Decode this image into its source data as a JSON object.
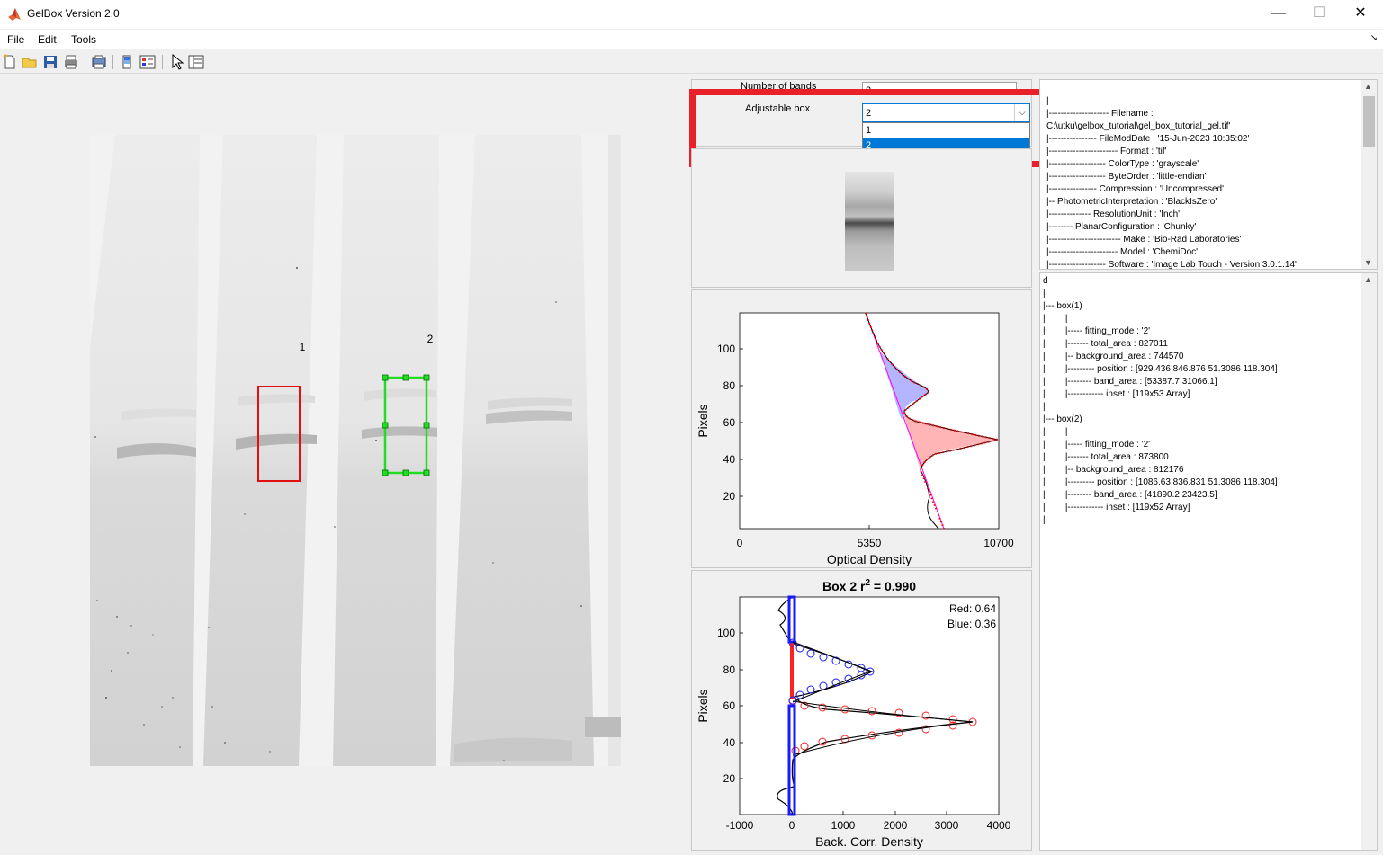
{
  "window": {
    "title": "GelBox Version 2.0",
    "minimize": "—",
    "maximize": "☐",
    "close": "✕"
  },
  "menu": [
    "File",
    "Edit",
    "Tools"
  ],
  "gel": {
    "lanes": [
      {
        "label": "1"
      },
      {
        "label": "2"
      }
    ]
  },
  "controls": {
    "num_bands_label": "Number of bands",
    "num_bands_value": "2",
    "adjustable_box_label": "Adjustable box",
    "adjustable_box_value": "2",
    "options": [
      "1",
      "2"
    ],
    "selected_option": "2"
  },
  "colors": {
    "highlight": "#e8202a",
    "box_red": "#e01010",
    "box_green": "#22dd22",
    "selection": "#0078d7",
    "fit_blue": "#1a1aff",
    "fit_red": "#ff2020"
  },
  "info_top": {
    "lines": [
      "|",
      "|-------------------- Filename :",
      "C:\\utku\\gelbox_tutorial\\gel_box_tutorial_gel.tif'",
      "|---------------- FileModDate : '15-Jun-2023 10:35:02'",
      "|----------------------- Format : 'tif'",
      "|------------------- ColorType : 'grayscale'",
      "|------------------- ByteOrder : 'little-endian'",
      "|---------------- Compression : 'Uncompressed'",
      "|-- PhotometricInterpretation : 'BlackIsZero'",
      "|-------------- ResolutionUnit : 'Inch'",
      "|-------- PlanarConfiguration : 'Chunky'",
      "|------------------------ Make : 'Bio-Rad Laboratories'",
      "|----------------------- Model : 'ChemiDoc'",
      "|------------------- Software : 'Image Lab Touch - Version 3.0.1.14'"
    ]
  },
  "info_bottom": {
    "lines": [
      "d",
      "|",
      "|--- box(1)",
      "|        |",
      "|        |----- fitting_mode : '2'",
      "|        |------- total_area : 827011",
      "|        |-- background_area : 744570",
      "|        |--------- position : [929.436 846.876 51.3086 118.304]",
      "|        |-------- band_area : [53387.7 31066.1]",
      "|        |------------ inset : [119x53 Array]",
      "|",
      "|--- box(2)",
      "|        |",
      "|        |----- fitting_mode : '2'",
      "|        |------- total_area : 873800",
      "|        |-- background_area : 812176",
      "|        |--------- position : [1086.63 836.831 51.3086 118.304]",
      "|        |-------- band_area : [41890.2 23423.5]",
      "|        |------------ inset : [119x52 Array]",
      "|"
    ]
  },
  "plot1": {
    "ylabel": "Pixels",
    "xlabel": "Optical Density",
    "x_ticks": [
      "0",
      "5350",
      "10700"
    ],
    "y_ticks": [
      "20",
      "40",
      "60",
      "80",
      "100"
    ]
  },
  "plot2": {
    "title_prefix": "Box 2 r",
    "title_sup": "2",
    "title_suffix": " = 0.990",
    "ylabel": "Pixels",
    "xlabel": "Back. Corr. Density",
    "x_ticks": [
      "-1000",
      "0",
      "1000",
      "2000",
      "3000",
      "4000"
    ],
    "y_ticks": [
      "20",
      "40",
      "60",
      "80",
      "100"
    ],
    "legend_red": "Red: 0.64",
    "legend_blue": "Blue: 0.36"
  },
  "chart_data": [
    {
      "type": "line",
      "xlabel": "Optical Density",
      "ylabel": "Pixels",
      "xlim": [
        0,
        10700
      ],
      "ylim": [
        0,
        119
      ],
      "x_ticks": [
        0,
        5350,
        10700
      ],
      "y_ticks": [
        20,
        40,
        60,
        80,
        100
      ],
      "series": [
        {
          "values": [
            [
              5150,
              119
            ],
            [
              5400,
              110
            ],
            [
              5800,
              100
            ],
            [
              6300,
              90
            ],
            [
              7600,
              80
            ],
            [
              6800,
              70
            ],
            [
              6500,
              62
            ],
            [
              8700,
              56
            ],
            [
              10700,
              50
            ],
            [
              9000,
              44
            ],
            [
              7600,
              40
            ],
            [
              7700,
              30
            ],
            [
              7300,
              15
            ],
            [
              8100,
              2
            ]
          ]
        }
      ]
    },
    {
      "type": "line",
      "title": "Box 2 r2 = 0.990",
      "xlabel": "Back. Corr. Density",
      "ylabel": "Pixels",
      "xlim": [
        -1000,
        4000
      ],
      "ylim": [
        0,
        119
      ],
      "x_ticks": [
        -1000,
        0,
        1000,
        2000,
        3000,
        4000
      ],
      "y_ticks": [
        20,
        40,
        60,
        80,
        100
      ],
      "legend": [
        "Red: 0.64",
        "Blue: 0.36"
      ],
      "series": [
        {
          "name": "Red",
          "values": [
            [
              0,
              119
            ],
            [
              0,
              70
            ],
            [
              500,
              60
            ],
            [
              2000,
              57
            ],
            [
              3500,
              51
            ],
            [
              2000,
              45
            ],
            [
              500,
              38
            ],
            [
              0,
              30
            ],
            [
              0,
              2
            ]
          ]
        },
        {
          "name": "Blue",
          "values": [
            [
              0,
              119
            ],
            [
              0,
              95
            ],
            [
              600,
              85
            ],
            [
              1600,
              78
            ],
            [
              900,
              70
            ],
            [
              200,
              62
            ],
            [
              0,
              55
            ],
            [
              0,
              2
            ]
          ]
        }
      ]
    }
  ]
}
